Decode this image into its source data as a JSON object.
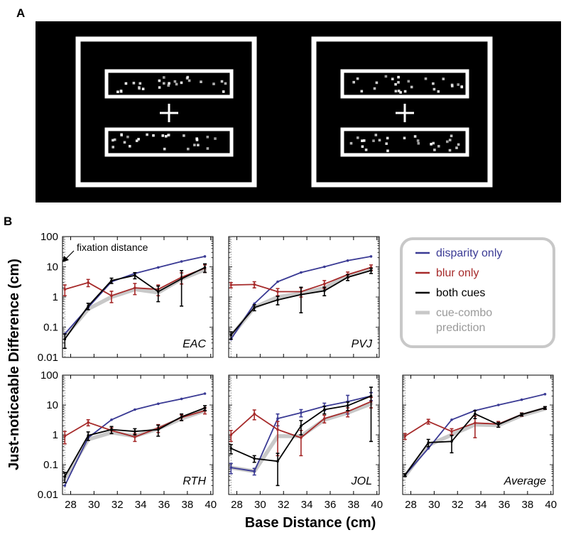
{
  "panel_labels": {
    "a": "A",
    "b": "B"
  },
  "colors": {
    "disparity": "#3a3a94",
    "blur": "#a62a2a",
    "both": "#000000",
    "combo": "#c8c8c8",
    "stim_bg": "#000000",
    "stim_fg": "#ffffff"
  },
  "stimulus": {
    "description_icons": [
      "fixation-cross-icon",
      "random-dot-strip-icon"
    ]
  },
  "annotation": {
    "fixation": "fixation distance"
  },
  "legend": {
    "entries": [
      {
        "key": "disparity",
        "label": "disparity only"
      },
      {
        "key": "blur",
        "label": "blur only"
      },
      {
        "key": "both",
        "label": "both cues"
      },
      {
        "key": "combo",
        "label": "cue-combo prediction",
        "lines": [
          "cue-combo",
          "prediction"
        ]
      }
    ]
  },
  "axes": {
    "xlabel": "Base Distance (cm)",
    "ylabel": "Just-noticeable Difference (cm)",
    "x_ticks": [
      28,
      30,
      32,
      34,
      36,
      38,
      40
    ],
    "x_range": [
      27.3,
      40.2
    ],
    "y_ticks": [
      0.01,
      0.1,
      1,
      10,
      100
    ],
    "y_tick_labels": [
      "0.01",
      "0.1",
      "1",
      "10",
      "100"
    ],
    "y_range": [
      0.01,
      100
    ],
    "y_scale": "log",
    "fixation_x": 27.5
  },
  "chart_data": [
    {
      "type": "line",
      "subject": "EAC",
      "x": [
        27.5,
        29.5,
        31.5,
        33.5,
        35.5,
        37.5,
        39.5
      ],
      "series": [
        {
          "name": "disparity only",
          "values": [
            0.06,
            0.45,
            3.2,
            6.0,
            9.5,
            15,
            22
          ],
          "err": [
            0,
            0,
            0,
            0,
            0,
            0,
            0
          ]
        },
        {
          "name": "blur only",
          "values": [
            1.8,
            3.0,
            1.1,
            2.0,
            1.8,
            4.5,
            9.0
          ],
          "err": [
            0.7,
            0.8,
            0.45,
            0.8,
            0.7,
            1.8,
            2.5
          ]
        },
        {
          "name": "both cues",
          "values": [
            0.04,
            0.5,
            3.5,
            5.2,
            1.5,
            4.0,
            9.5
          ],
          "err": [
            0.02,
            0.12,
            0.7,
            1.2,
            0.8,
            3.5,
            3.0
          ]
        },
        {
          "name": "cue-combo prediction",
          "values": [
            0.05,
            0.4,
            1.0,
            1.8,
            1.4,
            4.0,
            8.0
          ]
        }
      ]
    },
    {
      "type": "line",
      "subject": "PVJ",
      "x": [
        27.5,
        29.5,
        31.5,
        33.5,
        35.5,
        37.5,
        39.5
      ],
      "series": [
        {
          "name": "disparity only",
          "values": [
            0.04,
            0.6,
            3.2,
            6.5,
            10,
            16,
            22
          ],
          "err": [
            0,
            0,
            0,
            0,
            0,
            0,
            0
          ]
        },
        {
          "name": "blur only",
          "values": [
            2.5,
            2.6,
            1.5,
            1.5,
            2.7,
            5.5,
            9.5
          ],
          "err": [
            0.5,
            0.6,
            0.4,
            0.5,
            0.8,
            1.2,
            2.0
          ]
        },
        {
          "name": "both cues",
          "values": [
            0.055,
            0.45,
            0.8,
            1.2,
            1.6,
            4.5,
            7.5
          ],
          "err": [
            0.015,
            0.1,
            0.25,
            0.9,
            0.5,
            1.0,
            1.5
          ]
        },
        {
          "name": "cue-combo prediction",
          "values": [
            0.05,
            0.45,
            1.0,
            1.3,
            2.0,
            5.0,
            8.5
          ]
        }
      ]
    },
    {
      "type": "line",
      "subject": "RTH",
      "x": [
        27.5,
        29.5,
        31.5,
        33.5,
        35.5,
        37.5,
        39.5
      ],
      "series": [
        {
          "name": "disparity only",
          "values": [
            0.02,
            0.8,
            3.2,
            7.0,
            11,
            16,
            24
          ],
          "err": [
            0,
            0,
            0,
            0,
            0,
            0,
            0
          ]
        },
        {
          "name": "blur only",
          "values": [
            0.9,
            2.6,
            1.4,
            0.85,
            1.7,
            3.8,
            6.5
          ],
          "err": [
            0.4,
            0.6,
            0.3,
            0.25,
            0.5,
            0.8,
            1.5
          ]
        },
        {
          "name": "both cues",
          "values": [
            0.04,
            0.95,
            1.5,
            1.3,
            1.5,
            4.0,
            8.0
          ],
          "err": [
            0.015,
            0.3,
            0.4,
            0.3,
            0.6,
            1.0,
            1.5
          ]
        },
        {
          "name": "cue-combo prediction",
          "values": [
            0.035,
            0.7,
            1.2,
            0.9,
            1.6,
            3.5,
            6.5
          ]
        }
      ]
    },
    {
      "type": "line",
      "subject": "JOL",
      "x": [
        27.5,
        29.5,
        31.5,
        33.5,
        35.5,
        37.5,
        39.5
      ],
      "series": [
        {
          "name": "disparity only",
          "values": [
            0.08,
            0.06,
            3.5,
            5.5,
            9.0,
            13,
            20
          ],
          "err": [
            0.03,
            0.015,
            1.5,
            1.5,
            2.5,
            8,
            6
          ]
        },
        {
          "name": "blur only",
          "values": [
            1.0,
            5.0,
            1.5,
            0.8,
            3.5,
            6.0,
            13
          ],
          "err": [
            0.4,
            1.8,
            1.3,
            0.6,
            1.0,
            2.0,
            5.0
          ]
        },
        {
          "name": "both cues",
          "values": [
            0.35,
            0.16,
            0.13,
            2.0,
            7.0,
            9.5,
            20
          ],
          "err": [
            0.12,
            0.04,
            0.11,
            1.0,
            2.0,
            3.0,
            19.4
          ]
        },
        {
          "name": "cue-combo prediction",
          "values": [
            0.08,
            0.06,
            0.9,
            0.9,
            3.2,
            5.5,
            11
          ]
        }
      ]
    },
    {
      "type": "line",
      "subject": "Average",
      "x": [
        27.5,
        29.5,
        31.5,
        33.5,
        35.5,
        37.5,
        39.5
      ],
      "series": [
        {
          "name": "disparity only",
          "values": [
            0.045,
            0.35,
            3.2,
            6.5,
            10,
            15,
            23
          ],
          "err": [
            0,
            0,
            0,
            0,
            0,
            0,
            0
          ]
        },
        {
          "name": "blur only",
          "values": [
            0.9,
            2.8,
            1.3,
            2.5,
            2.3,
            4.8,
            8.0
          ],
          "err": [
            0.2,
            0.5,
            0.3,
            1.7,
            0.5,
            0.6,
            0.8
          ]
        },
        {
          "name": "both cues",
          "values": [
            0.045,
            0.55,
            0.6,
            5.0,
            2.2,
            4.8,
            8.0
          ],
          "err": [
            0.005,
            0.15,
            0.35,
            1.5,
            0.4,
            0.5,
            0.8
          ]
        },
        {
          "name": "cue-combo prediction",
          "values": [
            0.042,
            0.45,
            1.0,
            2.2,
            2.1,
            4.5,
            7.5
          ]
        }
      ]
    }
  ]
}
